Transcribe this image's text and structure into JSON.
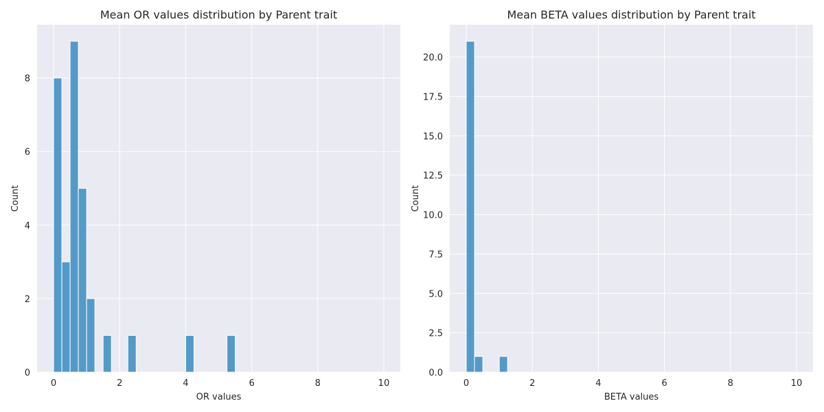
{
  "chart_data": [
    {
      "type": "bar",
      "title": "Mean OR values distribution by Parent trait",
      "xlabel": "OR values",
      "ylabel": "Count",
      "xlim": [
        -0.5,
        10.5
      ],
      "ylim": [
        0,
        9.45
      ],
      "xticks": [
        "0",
        "2",
        "4",
        "6",
        "8",
        "10"
      ],
      "xtick_values": [
        0,
        2,
        4,
        6,
        8,
        10
      ],
      "yticks": [
        "0",
        "2",
        "4",
        "6",
        "8"
      ],
      "ytick_values": [
        0,
        2,
        4,
        6,
        8
      ],
      "grid": true,
      "bin_edges": [
        0,
        0.25,
        0.5,
        0.75,
        1.0,
        1.25,
        1.5,
        1.75,
        2.0,
        2.25,
        2.5,
        2.75,
        3.0,
        3.25,
        3.5,
        3.75,
        4.0,
        4.25,
        4.5,
        4.75,
        5.0,
        5.25,
        5.5,
        5.75,
        6.0,
        6.25,
        6.5,
        6.75,
        7.0,
        7.25,
        7.5,
        7.75,
        8.0,
        8.25,
        8.5,
        8.75,
        9.0,
        9.25,
        9.5,
        9.75,
        10.0
      ],
      "values": [
        8,
        3,
        9,
        5,
        2,
        0,
        1,
        0,
        0,
        1,
        0,
        0,
        0,
        0,
        0,
        0,
        1,
        0,
        0,
        0,
        0,
        1,
        0,
        0,
        0,
        0,
        0,
        0,
        0,
        0,
        0,
        0,
        0,
        0,
        0,
        0,
        0,
        0,
        0,
        0
      ],
      "bar_color": "#4c96c6"
    },
    {
      "type": "bar",
      "title": "Mean BETA values distribution by Parent trait",
      "xlabel": "BETA values",
      "ylabel": "Count",
      "xlim": [
        -0.5,
        10.5
      ],
      "ylim": [
        0,
        22.05
      ],
      "xticks": [
        "0",
        "2",
        "4",
        "6",
        "8",
        "10"
      ],
      "xtick_values": [
        0,
        2,
        4,
        6,
        8,
        10
      ],
      "yticks": [
        "0.0",
        "2.5",
        "5.0",
        "7.5",
        "10.0",
        "12.5",
        "15.0",
        "17.5",
        "20.0"
      ],
      "ytick_values": [
        0,
        2.5,
        5,
        7.5,
        10,
        12.5,
        15,
        17.5,
        20
      ],
      "grid": true,
      "bin_edges": [
        0,
        0.25,
        0.5,
        0.75,
        1.0,
        1.25,
        1.5,
        1.75,
        2.0,
        2.25,
        2.5,
        2.75,
        3.0,
        3.25,
        3.5,
        3.75,
        4.0,
        4.25,
        4.5,
        4.75,
        5.0,
        5.25,
        5.5,
        5.75,
        6.0,
        6.25,
        6.5,
        6.75,
        7.0,
        7.25,
        7.5,
        7.75,
        8.0,
        8.25,
        8.5,
        8.75,
        9.0,
        9.25,
        9.5,
        9.75,
        10.0
      ],
      "values": [
        21,
        1,
        0,
        0,
        1,
        0,
        0,
        0,
        0,
        0,
        0,
        0,
        0,
        0,
        0,
        0,
        0,
        0,
        0,
        0,
        0,
        0,
        0,
        0,
        0,
        0,
        0,
        0,
        0,
        0,
        0,
        0,
        0,
        0,
        0,
        0,
        0,
        0,
        0,
        0
      ],
      "bar_color": "#4c96c6"
    }
  ]
}
